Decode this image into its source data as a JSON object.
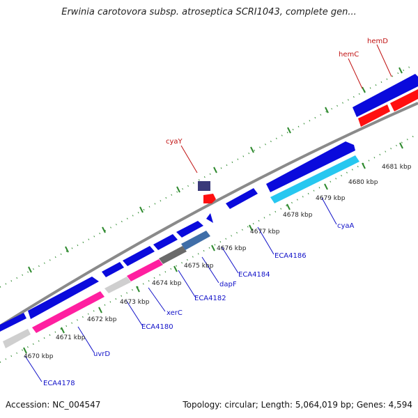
{
  "title": "Erwinia carotovora subsp. atroseptica SCRI1043, complete gen...",
  "footer": {
    "accession": "Accession: NC_004547",
    "stats": "Topology: circular; Length: 5,064,019 bp; Genes: 4,594"
  },
  "colors": {
    "forward_cds": "#0a0adc",
    "reverse_cds": "#ff1fa0",
    "rna_gene": "#ff1010",
    "cyan_cds": "#27c7f0",
    "gray_cds": "#cfcfcf",
    "backbone": "#8a8a8a",
    "ticks": "#2f8a2f",
    "blue_label": "#1010c8",
    "red_label": "#c01010"
  },
  "scale_labels": [
    "4670 kbp",
    "4671 kbp",
    "4672 kbp",
    "4673 kbp",
    "4674 kbp",
    "4675 kbp",
    "4676 kbp",
    "4677 kbp",
    "4678 kbp",
    "4679 kbp",
    "4680 kbp",
    "4681 kbp"
  ],
  "gene_labels": {
    "blue": [
      "ECA4178",
      "uvrD",
      "ECA4180",
      "xerC",
      "ECA4182",
      "dapF",
      "ECA4184",
      "ECA4186",
      "cyaA"
    ],
    "red": [
      "cyaY",
      "hemC",
      "hemD"
    ]
  }
}
